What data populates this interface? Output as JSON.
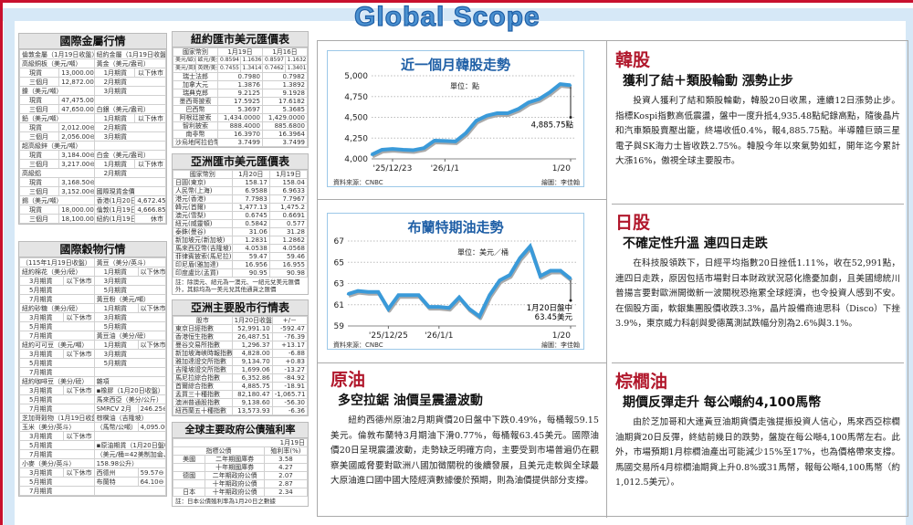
{
  "masthead": {
    "logo": "Global Scope"
  },
  "colors": {
    "accent_red": "#c8102e",
    "brand_blue": "#4a90d0",
    "line_blue": "#3a9ad9"
  },
  "metals": {
    "title": "國際金屬行情",
    "rows": [
      [
        "倫敦金屬（1月19日收盤）",
        "",
        "紐約金屬（1月19日收盤）",
        ""
      ],
      [
        "高級銅板（美元/噸）",
        "",
        "黃金（美元/盎司）",
        ""
      ],
      [
        "現貨",
        "13,000.00平",
        "1月期貨",
        "以下休市"
      ],
      [
        "三個月",
        "12,872.00⊖",
        "2月期貨",
        ""
      ],
      [
        "鎳（美元/噸）",
        "",
        "3月期貨",
        ""
      ],
      [
        "現貨",
        "47,475.00⊖",
        "",
        ""
      ],
      [
        "三個月",
        "47,650.00⊖",
        "白銀（美元/盎司）",
        ""
      ],
      [
        "鉛（美元/噸）",
        "",
        "1月期貨",
        "以下休市"
      ],
      [
        "現貨",
        "2,012.00⊖",
        "2月期貨",
        ""
      ],
      [
        "三個月",
        "2,056.00⊖",
        "3月期貨",
        ""
      ],
      [
        "超高級鋅（美元/噸）",
        "",
        "",
        ""
      ],
      [
        "現貨",
        "3,184.00⊖",
        "白金（美元/盎司）",
        ""
      ],
      [
        "三個月",
        "3,217.00⊖",
        "1月期貨",
        "以下休市"
      ],
      [
        "高級鋁",
        "",
        "2月期貨",
        ""
      ],
      [
        "現貨",
        "3,168.50⊖",
        "",
        ""
      ],
      [
        "三個月",
        "3,152.00⊖",
        "國際現貨金價",
        ""
      ],
      [
        "錫（美元/噸）",
        "",
        "香港(1月20日)",
        "4,672.45⊕"
      ],
      [
        "現貨",
        "18,000.00⊕",
        "倫敦(1月19日)",
        "4,666.85⊕"
      ],
      [
        "三個月",
        "18,100.00⊕",
        "紐約(1月19日)",
        "休市"
      ]
    ]
  },
  "grains": {
    "title": "國際穀物行情",
    "rows": [
      [
        "（115年1月19日收盤）",
        "",
        "黃豆（美分/英斗）",
        ""
      ],
      [
        "紐約棉花（美分/磅）",
        "",
        "1月期貨",
        "以下休市"
      ],
      [
        "3月期貨",
        "以下休市",
        "3月期貨",
        ""
      ],
      [
        "5月期貨",
        "",
        "5月期貨",
        ""
      ],
      [
        "7月期貨",
        "",
        "黃豆粉（美元/噸）",
        ""
      ],
      [
        "紐約砂糖（美分/磅）",
        "",
        "1月期貨",
        "以下休市"
      ],
      [
        "3月期貨",
        "以下休市",
        "3月期貨",
        ""
      ],
      [
        "5月期貨",
        "",
        "5月期貨",
        ""
      ],
      [
        "7月期貨",
        "",
        "黃豆油（美分/磅）",
        ""
      ],
      [
        "紐約可可豆（美元/噸）",
        "",
        "1月期貨",
        "以下休市"
      ],
      [
        "3月期貨",
        "以下休市",
        "3月期貨",
        ""
      ],
      [
        "5月期貨",
        "",
        "5月期貨",
        ""
      ],
      [
        "7月期貨",
        "",
        "",
        ""
      ],
      [
        "紐約咖啡豆（美分/磅）",
        "",
        "雜項",
        ""
      ],
      [
        "3月期貨",
        "以下休市",
        "▪橡膠（1月20日收盤）",
        ""
      ],
      [
        "5月期貨",
        "",
        "馬來西亞（美分/公斤）",
        ""
      ],
      [
        "7月期貨",
        "",
        "SMRCV 2月",
        "246.25⊖"
      ],
      [
        "芝加哥穀物（1月19日收盤）",
        "",
        "棕櫚油（吉隆坡）",
        ""
      ],
      [
        "玉米（美分/英斗）",
        "",
        "（馬幣/公噸）",
        "4,095.00⊖"
      ],
      [
        "3月期貨",
        "以下休市",
        "",
        ""
      ],
      [
        "5月期貨",
        "",
        "▪原油期貨（1月20日盤中）",
        ""
      ],
      [
        "7月期貨",
        "",
        "（美元/桶=42美制加侖、",
        ""
      ],
      [
        "小麥（美分/英斗）",
        "",
        "158.98公升）",
        ""
      ],
      [
        "3月期貨",
        "以下休市",
        "西德州",
        "59.57⊖"
      ],
      [
        "5月期貨",
        "",
        "布蘭特",
        "64.10⊖"
      ],
      [
        "7月期貨",
        "",
        "",
        ""
      ]
    ]
  },
  "ny_fx": {
    "title": "紐約匯市美元匯價表",
    "header": [
      "國家幣別",
      "1月19日",
      "1月16日"
    ],
    "pair_rows": [
      [
        "美元/歐元",
        "歐元/美元",
        "0.8594",
        "1.1636",
        "0.8597",
        "1.1632"
      ],
      [
        "美元/英鎊",
        "英鎊/美元",
        "0.7455",
        "1.3414",
        "0.7462",
        "1.3401"
      ]
    ],
    "rows": [
      [
        "瑞士法郎",
        "0.7980",
        "0.7982"
      ],
      [
        "加拿大元",
        "1.3876",
        "1.3892"
      ],
      [
        "瑞典克郎",
        "9.2125",
        "9.1928"
      ],
      [
        "墨西哥披索",
        "17.5925",
        "17.6182"
      ],
      [
        "巴西幣",
        "5.3697",
        "5.3685"
      ],
      [
        "阿根廷披索",
        "1,434.0000",
        "1,429.0000"
      ],
      [
        "智利披索",
        "888.4000",
        "885.6800"
      ],
      [
        "南非幣",
        "16.3970",
        "16.3964"
      ],
      [
        "沙烏地阿拉伯幣",
        "3.7499",
        "3.7499"
      ]
    ]
  },
  "asia_fx": {
    "title": "亞洲匯市美元匯價表",
    "header": [
      "國家幣別",
      "1月20日",
      "1月19日"
    ],
    "rows": [
      [
        "日圓(東京)",
        "158.17",
        "158.04"
      ],
      [
        "人民幣(上海)",
        "6.9588",
        "6.9633"
      ],
      [
        "港元(香港)",
        "7.7983",
        "7.7967"
      ],
      [
        "韓元(首爾)",
        "1,477.13",
        "1,475.2"
      ],
      [
        "澳元(雪梨)",
        "0.6745",
        "0.6691"
      ],
      [
        "紐元(威靈頓)",
        "0.5842",
        "0.577"
      ],
      [
        "泰銖(曼谷)",
        "31.06",
        "31.28"
      ],
      [
        "新加坡元(新加坡)",
        "1.2831",
        "1.2862"
      ],
      [
        "馬來西亞幣(吉隆坡)",
        "4.0538",
        "4.0568"
      ],
      [
        "菲律賓披索(馬尼拉)",
        "59.47",
        "59.46"
      ],
      [
        "印尼盾(雅加達)",
        "16.956",
        "16.955"
      ],
      [
        "印度盧比(孟買)",
        "90.95",
        "90.98"
      ]
    ],
    "note": "註：除澳元、紐元為一澳元、一紐元兌美元匯價外，其餘均為一美元兌其他通貨之匯價"
  },
  "asia_stocks": {
    "title": "亞洲主要股市行情表",
    "header": [
      "股市",
      "1月20日收盤",
      "+/－"
    ],
    "rows": [
      [
        "東京日經指數",
        "52,991.10",
        "-592.47"
      ],
      [
        "香港恒生指數",
        "26,487.51",
        "-76.39"
      ],
      [
        "曼谷交易所指數",
        "1,296.37",
        "+13.17"
      ],
      [
        "新加坡海峽時報指數",
        "4,828.00",
        "-6.88"
      ],
      [
        "雅加達證交所指數",
        "9,134.70",
        "+0.83"
      ],
      [
        "吉隆坡證交所指數",
        "1,699.06",
        "-13.27"
      ],
      [
        "馬尼拉綜合指數",
        "6,352.86",
        "-84.92"
      ],
      [
        "首爾綜合指數",
        "4,885.75",
        "-18.91"
      ],
      [
        "孟買三十種指數",
        "82,180.47",
        "-1,065.71"
      ],
      [
        "澳洲普通股指數",
        "9,138.60",
        "-56.30"
      ],
      [
        "紐西蘭五十種指數",
        "13,573.93",
        "-6.36"
      ]
    ]
  },
  "bonds": {
    "title": "全球主要政府公債殖利率",
    "date": "1月19日",
    "header": [
      "指標公債",
      "殖利率(%)"
    ],
    "rows": [
      [
        "美國",
        "二年期國庫券",
        "3.58"
      ],
      [
        "",
        "十年期國庫券",
        "4.27"
      ],
      [
        "德國",
        "二年期政府公債",
        "2.07"
      ],
      [
        "",
        "十年期政府公債",
        "2.87"
      ],
      [
        "日本",
        "十年期政府公債",
        "2.34"
      ]
    ],
    "note": "註：日本公債殖利率為1月20日之數據"
  },
  "chart_data": [
    {
      "type": "line",
      "title": "近一個月韓股走勢",
      "unit": "單位：點",
      "source": "資料來源：CNBC",
      "credit": "繪圖：李佳翰",
      "x": [
        "12/19",
        "12/22",
        "12/23",
        "12/24",
        "12/26",
        "12/29",
        "12/30",
        "1/2",
        "1/5",
        "1/6",
        "1/7",
        "1/8",
        "1/9",
        "1/12",
        "1/13",
        "1/14",
        "1/15",
        "1/16",
        "1/19",
        "1/20"
      ],
      "values": [
        4050,
        4110,
        4120,
        4110,
        4105,
        4130,
        4220,
        4215,
        4210,
        4310,
        4460,
        4520,
        4550,
        4550,
        4600,
        4680,
        4720,
        4800,
        4900,
        4885.75
      ],
      "ylim": [
        4000,
        5000
      ],
      "yticks": [
        "4,000",
        "4,250",
        "4,500",
        "4,750",
        "5,000"
      ],
      "ytick_values": [
        4000,
        4250,
        4500,
        4750,
        5000
      ],
      "xticks": [
        {
          "at": "12/23",
          "label": "'25/12/23"
        },
        {
          "at": "1/2",
          "label": "'26/1/1"
        },
        {
          "at": "1/20",
          "label": "1/20"
        }
      ],
      "annotation": "4,885.75點",
      "grid": true
    },
    {
      "type": "line",
      "title": "布蘭特期油走勢",
      "unit": "單位：美元／桶",
      "source": "資料來源：CNBC",
      "credit": "繪圖：李佳翰",
      "x": [
        "12/19",
        "12/22",
        "12/23",
        "12/24",
        "12/25",
        "12/26",
        "12/29",
        "12/30",
        "12/31",
        "1/1",
        "1/2",
        "1/5",
        "1/6",
        "1/7",
        "1/8",
        "1/9",
        "1/12",
        "1/13",
        "1/14",
        "1/15",
        "1/16",
        "1/19",
        "1/20"
      ],
      "values": [
        62.0,
        62.3,
        62.2,
        62.2,
        60.6,
        61.9,
        61.9,
        61.9,
        60.8,
        60.8,
        60.7,
        61.7,
        60.6,
        59.9,
        61.9,
        63.3,
        63.8,
        65.4,
        66.5,
        63.7,
        64.2,
        64.2,
        63.45
      ],
      "ylim": [
        59,
        67
      ],
      "yticks": [
        "59",
        "61",
        "63",
        "65",
        "67"
      ],
      "ytick_values": [
        59,
        61,
        63,
        65,
        67
      ],
      "xticks": [
        {
          "at": "12/25",
          "label": "'25/12/25"
        },
        {
          "at": "1/1",
          "label": "'26/1/1"
        },
        {
          "at": "1/20",
          "label": "1/20"
        }
      ],
      "annotation": [
        "1月20日盤中",
        "63.45美元"
      ],
      "grid": true
    }
  ],
  "articles": {
    "korea": {
      "kicker": "韓股",
      "headline": "獲利了結＋類股輪動 漲勢止步",
      "body": "投資人獲利了結和類股輪動，韓股20日收黑，連續12日漲勢止步。指標Kospi指數高低震盪，盤中一度升抵4,935.48點紀錄高點，隨後晶片和汽車類股賣壓出籠，終場收低0.4%，報4,885.75點。半導體巨頭三星電子與SK海力士皆收跌2.75%。韓股今年以來氣勢如虹，開年迄今累計大漲16%，傲視全球主要股市。"
    },
    "japan": {
      "kicker": "日股",
      "headline": "不確定性升溫 連四日走跌",
      "body": "在科技股領跌下，日經平均指數20日挫低1.11%，收在52,991點，連四日走跌，原因包括市場對日本財政狀況惡化擔憂加劇，且美國總統川普揚言要對歐洲開徵新一波關稅恐拖累全球經濟，也令投資人感到不安。在個股方面，軟銀集團股價收跌3.3%，晶片設備商迪思科（Disco）下挫3.9%，東京威力科創與愛德萬測試跌幅分別為2.6%與3.1%。"
    },
    "oil": {
      "kicker": "原油",
      "headline": "多空拉鋸 油價呈震盪波動",
      "body": "紐約西德州原油2月期貨價20日盤中下跌0.49%，每桶報59.15美元。倫敦布蘭特3月期油下滑0.77%，每桶報63.45美元。國際油價20日呈現震盪波動，走勢缺乏明確方向，主要受到市場普遍仍在觀察美國威脅要對歐洲八國加徵關稅的後續發展，且美元走軟與全球最大原油進口國中國大陸經濟數據優於預期，則為油價提供部分支撐。"
    },
    "palm": {
      "kicker": "棕櫚油",
      "headline": "期價反彈走升 每公噸約4,100馬幣",
      "body": "由於芝加哥和大連黃豆油期貨價走強提振投資人信心，馬來西亞棕櫚油期貨20日反彈，終結前幾日的跌勢，盤旋在每公噸4,100馬幣左右。此外，市場預期1月棕櫚油產出可能減少15%至17%，也為價格帶來支撐。馬國交易所4月棕櫚油期貨上升0.8%或31馬幣，報每公噸4,100馬幣（約1,012.5美元）。"
    }
  }
}
